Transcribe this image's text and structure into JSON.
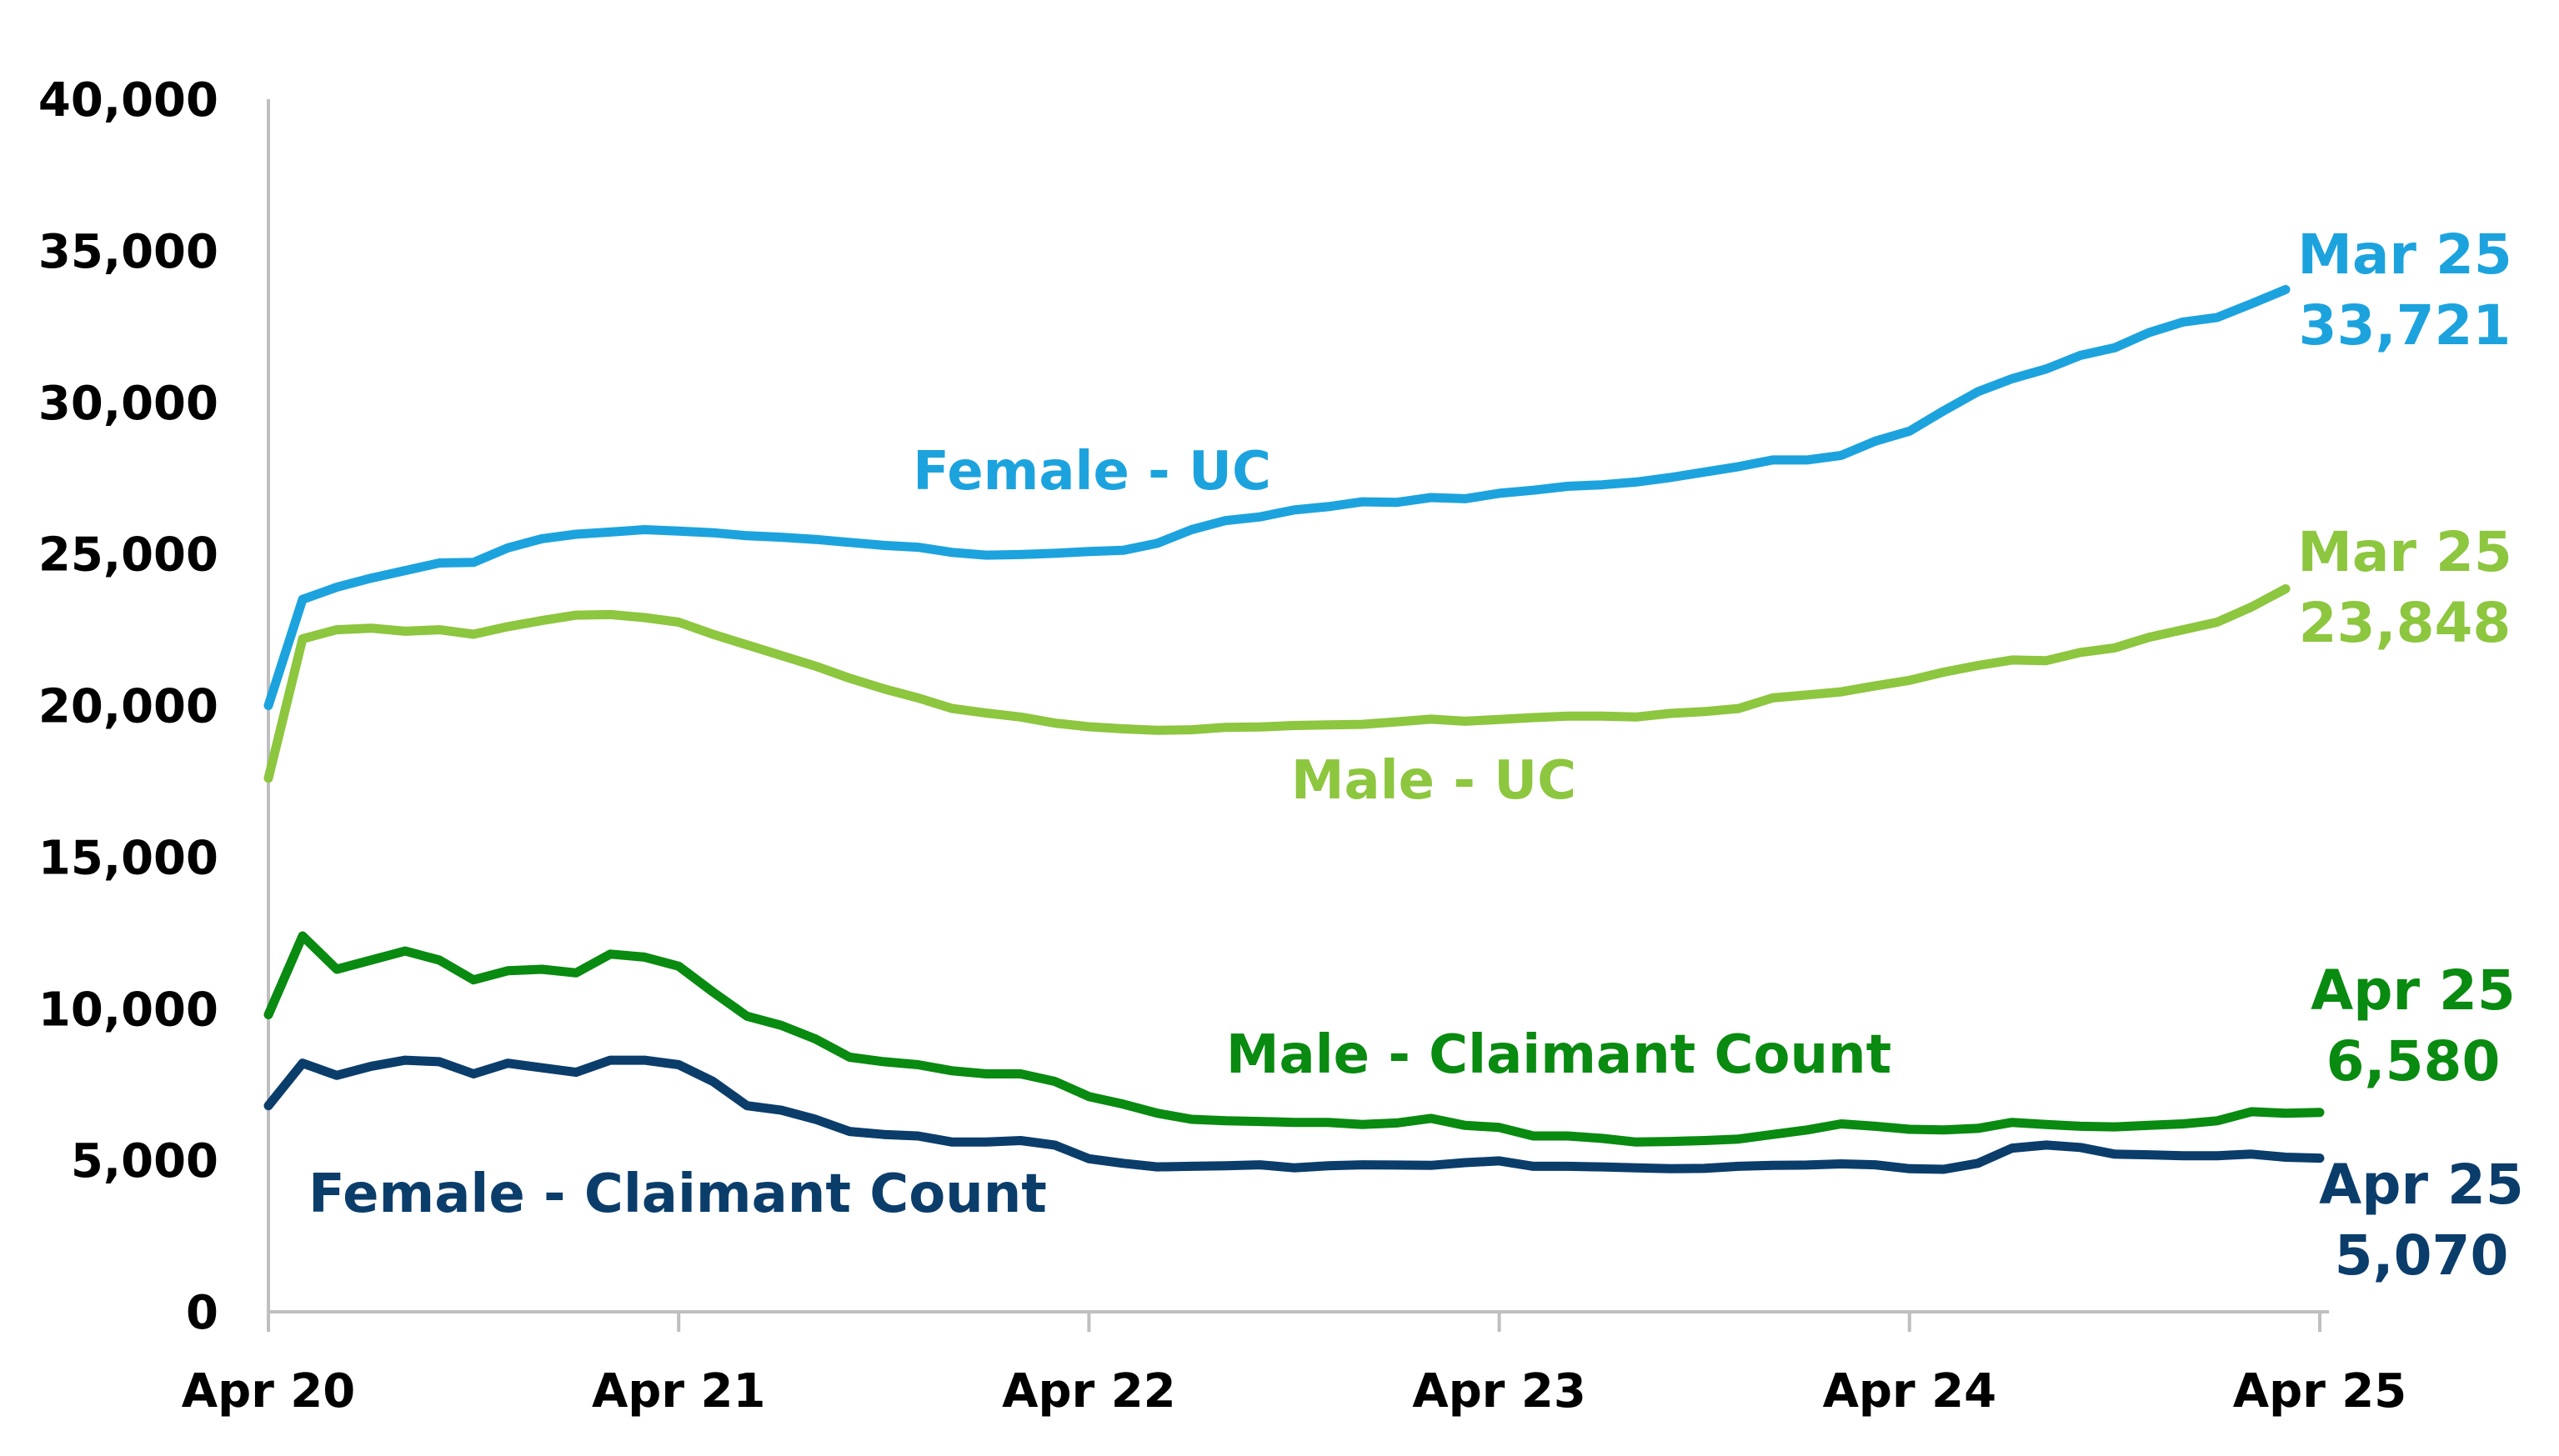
{
  "colors": {
    "female_uc": "#1CA3DE",
    "male_uc": "#8DC63F",
    "male_cc": "#098A10",
    "female_cc": "#0B3D6B",
    "axis": "#BFBFBF",
    "text": "#000000"
  },
  "chart_data": {
    "type": "line",
    "title": "",
    "xlabel": "",
    "ylabel": "",
    "ylim": [
      0,
      40000
    ],
    "yticks": [
      0,
      5000,
      10000,
      15000,
      20000,
      25000,
      30000,
      35000,
      40000
    ],
    "ytick_labels": [
      "0",
      "5,000",
      "10,000",
      "15,000",
      "20,000",
      "25,000",
      "30,000",
      "35,000",
      "40,000"
    ],
    "xlim": [
      "2020-04",
      "2025-04"
    ],
    "xticks": [
      "2020-04",
      "2021-04",
      "2022-04",
      "2023-04",
      "2024-04",
      "2025-04"
    ],
    "xtick_labels": [
      "Apr 20",
      "Apr 21",
      "Apr 22",
      "Apr 23",
      "Apr 24",
      "Apr 25"
    ],
    "grid": false,
    "legend": "none",
    "series": [
      {
        "name": "Female - UC",
        "color_key": "female_uc",
        "start": "2020-04",
        "values": [
          20000,
          23500,
          23900,
          24200,
          24450,
          24700,
          24720,
          25200,
          25500,
          25650,
          25720,
          25800,
          25750,
          25700,
          25600,
          25550,
          25480,
          25380,
          25280,
          25220,
          25050,
          24960,
          24980,
          25020,
          25080,
          25120,
          25350,
          25800,
          26100,
          26220,
          26450,
          26560,
          26720,
          26700,
          26860,
          26820,
          27000,
          27100,
          27230,
          27280,
          27370,
          27520,
          27700,
          27880,
          28100,
          28100,
          28250,
          28720,
          29050,
          29720,
          30350,
          30780,
          31100,
          31550,
          31800,
          32300,
          32650,
          32800,
          33250,
          33721
        ],
        "end_label": {
          "date": "Mar 25",
          "value": "33,721"
        }
      },
      {
        "name": "Male - UC",
        "color_key": "male_uc",
        "start": "2020-04",
        "values": [
          17600,
          22200,
          22500,
          22550,
          22450,
          22500,
          22350,
          22600,
          22800,
          22980,
          23000,
          22900,
          22750,
          22350,
          22000,
          21650,
          21300,
          20900,
          20550,
          20250,
          19900,
          19750,
          19620,
          19420,
          19300,
          19230,
          19180,
          19200,
          19280,
          19290,
          19340,
          19360,
          19380,
          19460,
          19550,
          19480,
          19540,
          19600,
          19650,
          19650,
          19620,
          19740,
          19800,
          19900,
          20250,
          20350,
          20450,
          20650,
          20830,
          21100,
          21320,
          21500,
          21480,
          21750,
          21900,
          22250,
          22500,
          22750,
          23250,
          23848
        ],
        "end_label": {
          "date": "Mar 25",
          "value": "23,848"
        }
      },
      {
        "name": "Male - Claimant Count",
        "color_key": "male_cc",
        "start": "2020-04",
        "values": [
          9800,
          12400,
          11300,
          11600,
          11900,
          11600,
          10950,
          11250,
          11300,
          11180,
          11800,
          11700,
          11400,
          10550,
          9750,
          9450,
          9000,
          8400,
          8250,
          8150,
          7950,
          7850,
          7850,
          7600,
          7100,
          6850,
          6550,
          6350,
          6300,
          6280,
          6250,
          6250,
          6180,
          6230,
          6380,
          6150,
          6080,
          5800,
          5800,
          5720,
          5600,
          5620,
          5650,
          5700,
          5850,
          6000,
          6200,
          6120,
          6020,
          6000,
          6050,
          6250,
          6180,
          6120,
          6100,
          6150,
          6200,
          6300,
          6600,
          6550,
          6580
        ],
        "end_label": {
          "date": "Apr 25",
          "value": "6,580"
        }
      },
      {
        "name": "Female - Claimant Count",
        "color_key": "female_cc",
        "start": "2020-04",
        "values": [
          6800,
          8200,
          7800,
          8100,
          8300,
          8250,
          7850,
          8200,
          8050,
          7900,
          8300,
          8300,
          8150,
          7600,
          6800,
          6650,
          6350,
          5950,
          5850,
          5800,
          5600,
          5600,
          5650,
          5500,
          5050,
          4900,
          4780,
          4800,
          4820,
          4850,
          4750,
          4820,
          4850,
          4840,
          4830,
          4920,
          4980,
          4800,
          4800,
          4780,
          4750,
          4720,
          4730,
          4800,
          4830,
          4840,
          4880,
          4850,
          4720,
          4700,
          4900,
          5400,
          5500,
          5420,
          5200,
          5180,
          5150,
          5150,
          5200,
          5100,
          5070
        ],
        "end_label": {
          "date": "Apr 25",
          "value": "5,070"
        }
      }
    ]
  }
}
